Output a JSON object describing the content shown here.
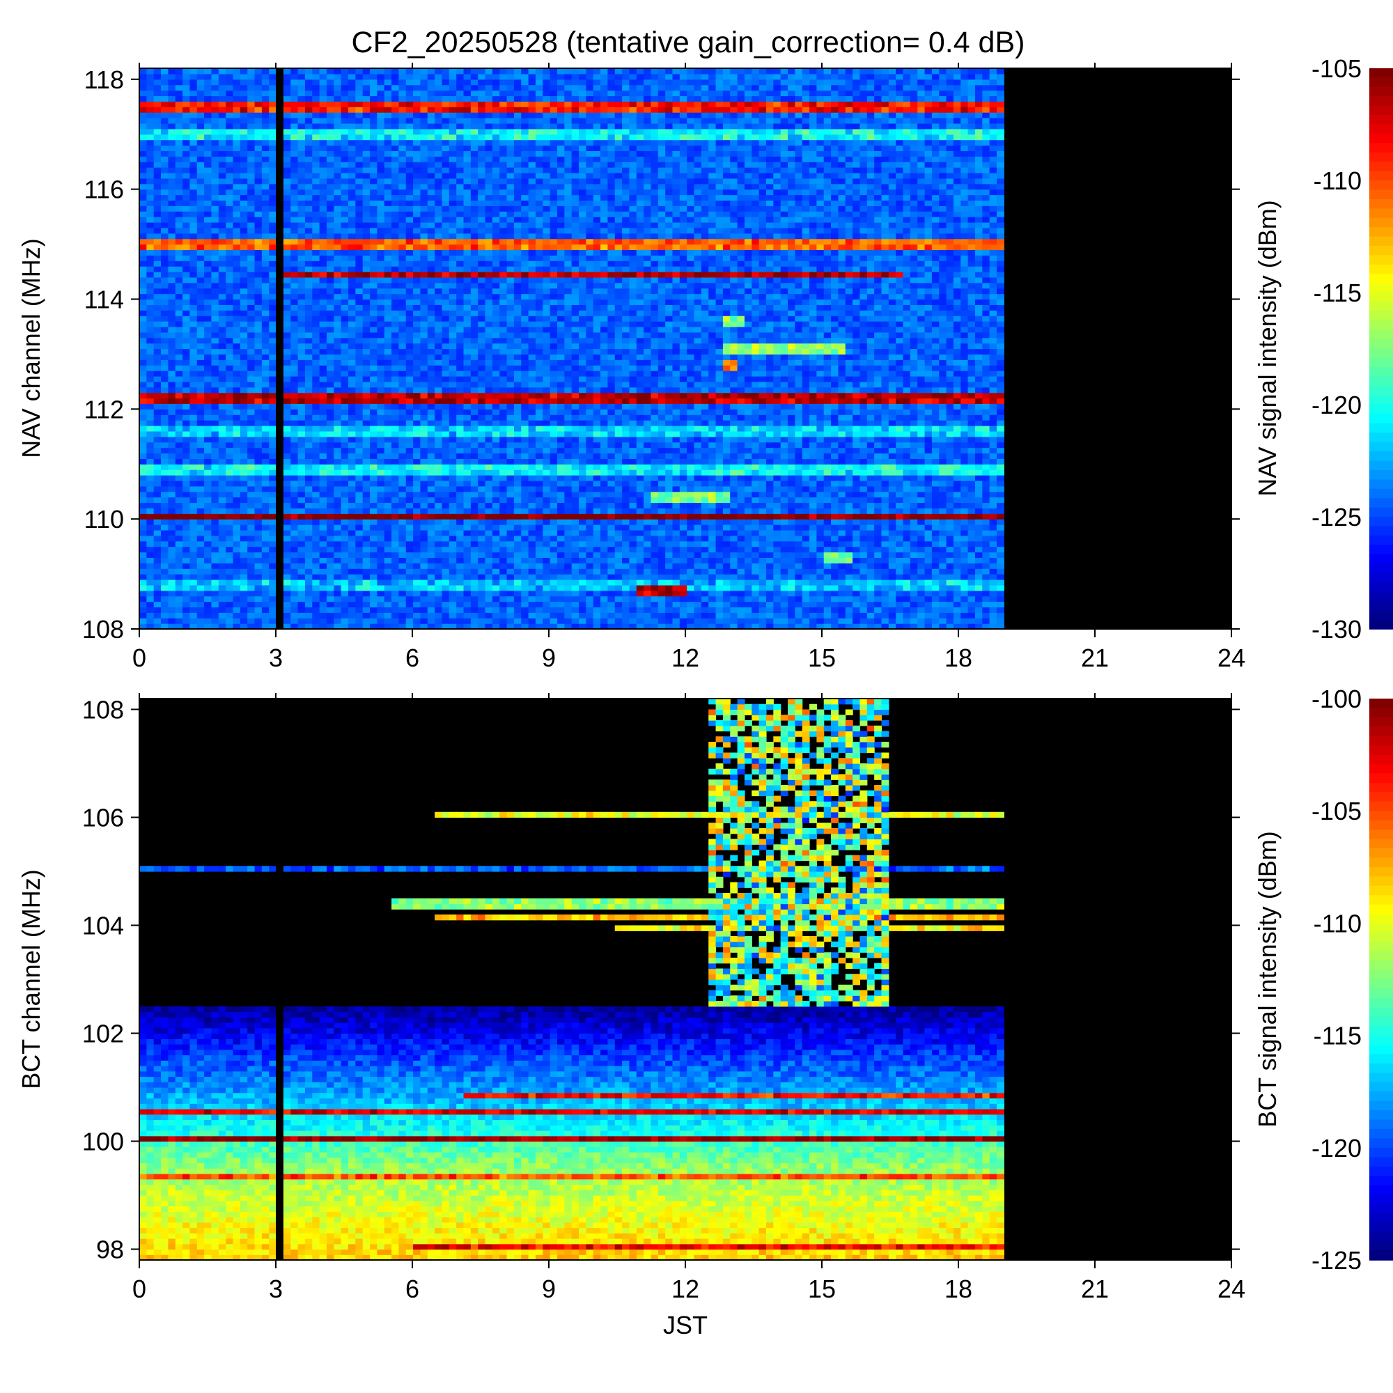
{
  "title": "CF2_20250528 (tentative gain_correction=  0.4 dB)",
  "chart_data": [
    {
      "type": "heatmap",
      "id": "nav",
      "ylabel": "NAV channel (MHz)",
      "xlabel": "",
      "colorbar_label": "NAV signal intensity (dBm)",
      "xlim": [
        0,
        24
      ],
      "ylim": [
        108,
        118.2
      ],
      "xticks": [
        "0",
        "3",
        "6",
        "9",
        "12",
        "15",
        "18",
        "21",
        "24"
      ],
      "yticks": [
        "108",
        "110",
        "112",
        "114",
        "116",
        "118"
      ],
      "color_range": [
        -130,
        -105
      ],
      "colorbar_ticks": [
        "-105",
        "-110",
        "-115",
        "-120",
        "-125",
        "-130"
      ],
      "data_end_jst": 19,
      "gap_jst": [
        3.0,
        3.1
      ],
      "base_dbm": -124.5,
      "bands": [
        {
          "mhz": 117.5,
          "dbm": -108.5,
          "from": 0,
          "to": 19
        },
        {
          "mhz": 115.0,
          "dbm": -110.5,
          "from": 0,
          "to": 19
        },
        {
          "mhz": 114.45,
          "dbm": -106.5,
          "from": 3.1,
          "to": 16.8
        },
        {
          "mhz": 112.2,
          "dbm": -106.5,
          "from": 0,
          "to": 19
        },
        {
          "mhz": 110.05,
          "dbm": -105.0,
          "from": 0,
          "to": 19
        },
        {
          "mhz": 108.8,
          "dbm": -122.0,
          "from": 0,
          "to": 19
        },
        {
          "mhz": 108.7,
          "dbm": -106.0,
          "from": 10.9,
          "to": 12.1
        },
        {
          "mhz": 112.8,
          "dbm": -110.0,
          "from": 12.8,
          "to": 13.2
        },
        {
          "mhz": 113.1,
          "dbm": -117.0,
          "from": 12.8,
          "to": 15.5
        },
        {
          "mhz": 113.6,
          "dbm": -117.0,
          "from": 12.9,
          "to": 13.3
        },
        {
          "mhz": 110.4,
          "dbm": -117.5,
          "from": 11.3,
          "to": 13.0
        },
        {
          "mhz": 109.3,
          "dbm": -117.0,
          "from": 15.1,
          "to": 15.7
        },
        {
          "mhz": 110.9,
          "dbm": -120.5,
          "from": 0,
          "to": 19
        },
        {
          "mhz": 111.6,
          "dbm": -121.5,
          "from": 0,
          "to": 19
        },
        {
          "mhz": 117.0,
          "dbm": -120.5,
          "from": 0,
          "to": 19
        }
      ]
    },
    {
      "type": "heatmap",
      "id": "bct",
      "ylabel": "BCT channel (MHz)",
      "xlabel": "JST",
      "colorbar_label": "BCT signal intensity (dBm)",
      "xlim": [
        0,
        24
      ],
      "ylim": [
        97.8,
        108.2
      ],
      "xticks": [
        "0",
        "3",
        "6",
        "9",
        "12",
        "15",
        "18",
        "21",
        "24"
      ],
      "yticks": [
        "98",
        "100",
        "102",
        "104",
        "106",
        "108"
      ],
      "color_range": [
        -125,
        -100
      ],
      "colorbar_ticks": [
        "-100",
        "-105",
        "-110",
        "-115",
        "-120",
        "-125"
      ],
      "data_end_jst": 19,
      "gap_jst": [
        3.0,
        3.1
      ],
      "noise_floor_gradient": [
        {
          "mhz": 97.8,
          "dbm": -108.0
        },
        {
          "mhz": 99.5,
          "dbm": -112.0
        },
        {
          "mhz": 100.5,
          "dbm": -116.5
        },
        {
          "mhz": 101.5,
          "dbm": -120.0
        },
        {
          "mhz": 102.5,
          "dbm": -124.5
        }
      ],
      "bands": [
        {
          "mhz": 100.05,
          "dbm": -100.0,
          "from": 0,
          "to": 19
        },
        {
          "mhz": 105.05,
          "dbm": -119.5,
          "from": 0,
          "to": 19
        },
        {
          "mhz": 106.05,
          "dbm": -110.0,
          "from": 6.5,
          "to": 19
        },
        {
          "mhz": 104.4,
          "dbm": -112.0,
          "from": 5.5,
          "to": 19
        },
        {
          "mhz": 104.15,
          "dbm": -108.0,
          "from": 6.5,
          "to": 19
        },
        {
          "mhz": 103.95,
          "dbm": -109.0,
          "from": 10.5,
          "to": 19
        },
        {
          "mhz": 100.85,
          "dbm": -103.5,
          "from": 7.2,
          "to": 19
        },
        {
          "mhz": 100.55,
          "dbm": -102.5,
          "from": 0,
          "to": 19
        },
        {
          "mhz": 99.35,
          "dbm": -105.0,
          "from": 0,
          "to": 19
        },
        {
          "mhz": 98.05,
          "dbm": -103.0,
          "from": 6.0,
          "to": 19
        }
      ],
      "activity_region": {
        "from": 12.5,
        "to": 16.5,
        "mhz_min": 102.5,
        "mhz_max": 108.2,
        "dbm": -113.0
      }
    }
  ]
}
